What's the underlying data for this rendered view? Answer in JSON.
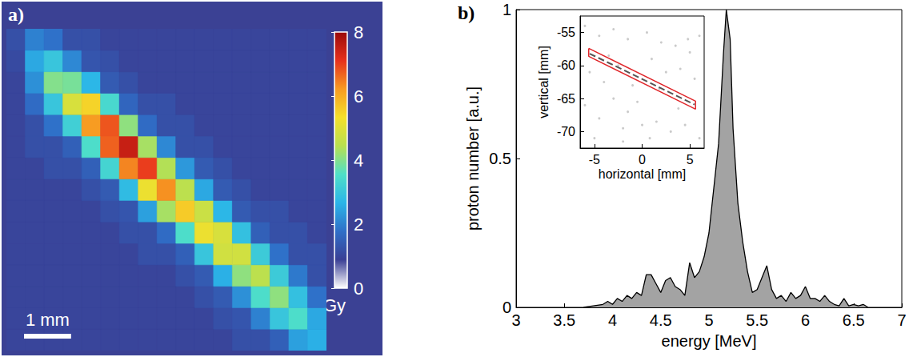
{
  "chart_data": [
    {
      "type": "heatmap",
      "label": "a)",
      "x": [
        0.2,
        0.6,
        1.0,
        1.4,
        1.8,
        2.2,
        2.6,
        3.0,
        3.4,
        3.8,
        4.2,
        4.6,
        5.0,
        5.4,
        5.8,
        6.2,
        6.6
      ],
      "y": [
        0.2,
        0.6,
        1.0,
        1.4,
        1.8,
        2.2,
        2.6,
        3.0,
        3.4,
        3.8,
        4.2,
        4.6,
        5.0,
        5.4,
        5.8
      ],
      "cells": [
        [
          1.0,
          1.0,
          1.0,
          1.0,
          1.0,
          1.0,
          1.0,
          1.0,
          1.0,
          1.0,
          1.0,
          1.0,
          1.2,
          1.2,
          1.5,
          2.4,
          2.6
        ],
        [
          1.0,
          1.0,
          1.0,
          1.0,
          1.0,
          1.0,
          1.0,
          1.0,
          1.0,
          1.0,
          1.0,
          1.2,
          1.3,
          2.0,
          3.0,
          3.5,
          2.5
        ],
        [
          1.0,
          1.0,
          1.0,
          1.0,
          1.0,
          1.0,
          1.0,
          1.0,
          1.0,
          1.0,
          1.2,
          1.4,
          2.2,
          3.5,
          4.1,
          2.9,
          1.8
        ],
        [
          1.0,
          1.0,
          1.0,
          1.0,
          1.0,
          1.0,
          1.0,
          1.0,
          1.0,
          1.2,
          1.4,
          2.6,
          4.1,
          4.5,
          3.1,
          1.9,
          1.2
        ],
        [
          1.0,
          1.0,
          1.0,
          1.0,
          1.0,
          1.0,
          1.0,
          1.2,
          1.2,
          1.5,
          3.0,
          4.8,
          4.8,
          3.1,
          1.8,
          1.2,
          1.2
        ],
        [
          1.0,
          1.0,
          1.0,
          1.0,
          1.0,
          1.0,
          1.2,
          1.2,
          1.7,
          3.5,
          5.2,
          4.9,
          2.9,
          1.5,
          1.2,
          1.2,
          1.0
        ],
        [
          1.0,
          1.0,
          1.0,
          1.0,
          1.0,
          1.2,
          1.3,
          2.4,
          4.3,
          5.6,
          4.7,
          2.7,
          1.4,
          1.2,
          1.2,
          1.0,
          1.0
        ],
        [
          1.0,
          1.0,
          1.0,
          1.0,
          1.2,
          1.4,
          2.8,
          5.2,
          6.3,
          4.5,
          2.5,
          1.4,
          1.2,
          1.0,
          1.0,
          1.0,
          1.0
        ],
        [
          1.0,
          1.0,
          1.2,
          1.2,
          1.5,
          3.3,
          6.4,
          7.0,
          4.4,
          2.3,
          1.4,
          1.2,
          1.0,
          1.0,
          1.0,
          1.0,
          1.0
        ],
        [
          1.0,
          1.2,
          1.2,
          1.5,
          3.5,
          6.7,
          7.5,
          4.3,
          2.1,
          1.2,
          1.2,
          1.0,
          1.0,
          1.0,
          1.0,
          1.0,
          1.0
        ],
        [
          1.0,
          1.2,
          1.8,
          3.2,
          6.2,
          6.8,
          4.1,
          1.7,
          1.2,
          1.2,
          1.0,
          1.0,
          1.0,
          1.0,
          1.0,
          1.0,
          1.0
        ],
        [
          1.0,
          1.7,
          3.0,
          4.9,
          5.5,
          3.4,
          1.6,
          1.2,
          1.2,
          1.0,
          1.0,
          1.0,
          1.0,
          1.0,
          1.0,
          1.0,
          1.0
        ],
        [
          1.0,
          2.2,
          4.0,
          3.9,
          2.7,
          1.4,
          1.2,
          1.0,
          1.0,
          1.0,
          1.0,
          1.0,
          1.0,
          1.0,
          1.0,
          1.0,
          1.0
        ],
        [
          1.1,
          2.5,
          3.0,
          2.1,
          1.3,
          1.2,
          1.0,
          1.0,
          1.0,
          1.0,
          1.0,
          1.0,
          1.0,
          1.0,
          1.0,
          1.0,
          1.0
        ],
        [
          1.2,
          2.0,
          1.8,
          1.2,
          1.2,
          1.0,
          1.0,
          1.0,
          1.0,
          1.0,
          1.0,
          1.0,
          1.0,
          1.0,
          1.0,
          1.0,
          1.0
        ]
      ],
      "xlim": [
        0,
        6.8
      ],
      "ylim": [
        0,
        6.0
      ],
      "tick_labels": false,
      "colorbar": {
        "range": [
          0,
          8
        ],
        "ticks": [
          0,
          2,
          4,
          6,
          8
        ],
        "label": "Gy"
      },
      "scale_bar": {
        "length": 1,
        "label": "1 mm"
      }
    },
    {
      "type": "area",
      "label": "b)",
      "x": [
        3.7,
        3.8,
        3.9,
        3.95,
        4.0,
        4.05,
        4.1,
        4.15,
        4.2,
        4.25,
        4.3,
        4.35,
        4.4,
        4.45,
        4.5,
        4.55,
        4.6,
        4.65,
        4.7,
        4.75,
        4.8,
        4.85,
        4.9,
        4.95,
        5.0,
        5.05,
        5.1,
        5.15,
        5.18,
        5.22,
        5.25,
        5.3,
        5.35,
        5.4,
        5.45,
        5.5,
        5.55,
        5.6,
        5.65,
        5.7,
        5.75,
        5.8,
        5.85,
        5.9,
        5.95,
        6.0,
        6.05,
        6.1,
        6.15,
        6.2,
        6.25,
        6.3,
        6.35,
        6.4,
        6.45,
        6.5,
        6.55,
        6.6,
        6.65
      ],
      "values": [
        0,
        0.005,
        0.01,
        0.02,
        0.01,
        0.03,
        0.02,
        0.04,
        0.03,
        0.05,
        0.04,
        0.11,
        0.11,
        0.08,
        0.05,
        0.09,
        0.1,
        0.07,
        0.06,
        0.04,
        0.15,
        0.1,
        0.12,
        0.17,
        0.25,
        0.4,
        0.55,
        0.85,
        1.0,
        0.9,
        0.6,
        0.35,
        0.22,
        0.12,
        0.05,
        0.06,
        0.1,
        0.14,
        0.06,
        0.03,
        0.04,
        0.02,
        0.05,
        0.03,
        0.04,
        0.07,
        0.03,
        0.03,
        0.02,
        0.04,
        0.02,
        0.01,
        0.005,
        0.03,
        0.005,
        0.01,
        0.005,
        0.01,
        0
      ],
      "color": "#a3a3a3",
      "xlim": [
        3,
        7
      ],
      "xticks": [
        3,
        3.5,
        4,
        4.5,
        5,
        5.5,
        6,
        6.5,
        7
      ],
      "ylim": [
        0,
        1
      ],
      "yticks": [
        0,
        0.5,
        1
      ],
      "xlabel": "energy [MeV]",
      "ylabel": "proton number [a.u.]"
    },
    {
      "type": "scatter",
      "x": [
        -6,
        -4.5,
        -3,
        -1.5,
        0.5,
        2,
        3.5,
        5,
        6,
        -5.5,
        -4,
        -2.5,
        -1,
        1,
        2.5,
        4,
        5.5,
        -6,
        -4.5,
        -3,
        -1.5,
        0,
        1.5,
        3,
        4.5,
        6,
        -5,
        -2,
        0.8,
        3.8,
        -3.5,
        1.8,
        -0.5,
        4.8,
        -2
      ],
      "values": [
        -54,
        -55.5,
        -54.5,
        -56,
        -55,
        -56.5,
        -57,
        -58,
        -55.5,
        -61,
        -62.5,
        -60,
        -63,
        -59,
        -61,
        -60.5,
        -62,
        -66,
        -68,
        -65,
        -67,
        -69,
        -68.5,
        -70,
        -69,
        -71,
        -71,
        -71.5,
        -71,
        -66.5,
        -58.5,
        -63.5,
        -65.5,
        -56,
        -69.5
      ],
      "color": "#bdbdbd",
      "marker": "circle",
      "xlim": [
        -6.5,
        6.5
      ],
      "xticks": [
        -5,
        0,
        5
      ],
      "ylim": [
        -72.5,
        -52.5
      ],
      "yticks": [
        -70,
        -65,
        -60,
        -55
      ],
      "xlabel": "horizontal [mm]",
      "ylabel": "vertical [mm]",
      "trace": {
        "type": "line",
        "x": [
          -5.5,
          5.5
        ],
        "values": [
          -58.2,
          -65.9
        ],
        "color": "#555555",
        "line_style": "dashed"
      },
      "selection": {
        "type": "line",
        "x": [
          -5.6,
          5.6,
          5.6,
          -5.6
        ],
        "values": [
          -57.4,
          -65.4,
          -66.6,
          -58.6
        ],
        "color": "#e0262a",
        "line_style": "solid"
      }
    }
  ]
}
